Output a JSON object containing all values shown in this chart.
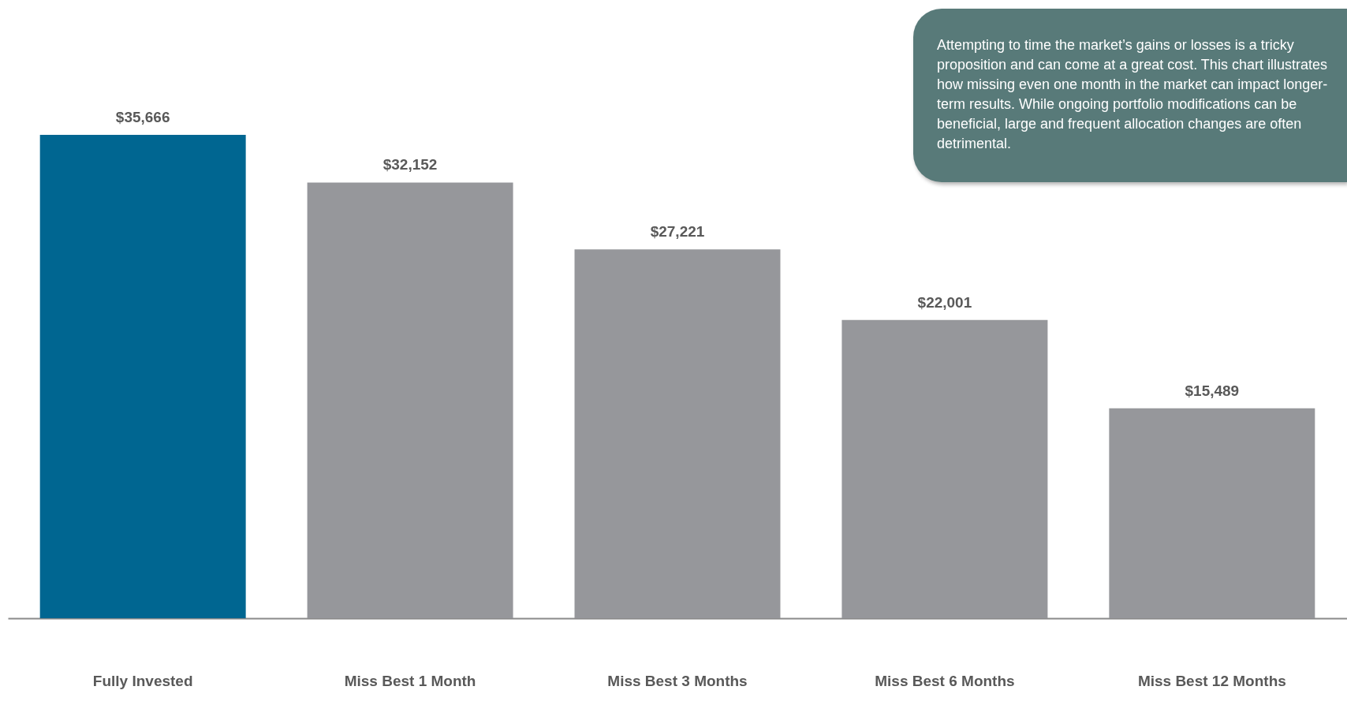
{
  "chart_data": {
    "type": "bar",
    "categories": [
      "Fully Invested",
      "Miss Best 1 Month",
      "Miss Best 3 Months",
      "Miss Best 6 Months",
      "Miss Best 12 Months"
    ],
    "values": [
      35666,
      32152,
      27221,
      22001,
      15489
    ],
    "colors": [
      "#006691",
      "#96979b",
      "#96979b",
      "#96979b",
      "#96979b"
    ],
    "value_labels": [
      "$35,666",
      "$32,152",
      "$27,221",
      "$22,001",
      "$15,489"
    ],
    "grid": false,
    "tick_labels": "x",
    "annotations": [
      "Attempting to time the market’s gains or losses is a tricky proposition and can come at a great cost. This chart illustrates how missing even one month in the market can impact longer-term results.  While ongoing portfolio modifications can be beneficial, large and frequent allocation changes are often detrimental."
    ]
  }
}
